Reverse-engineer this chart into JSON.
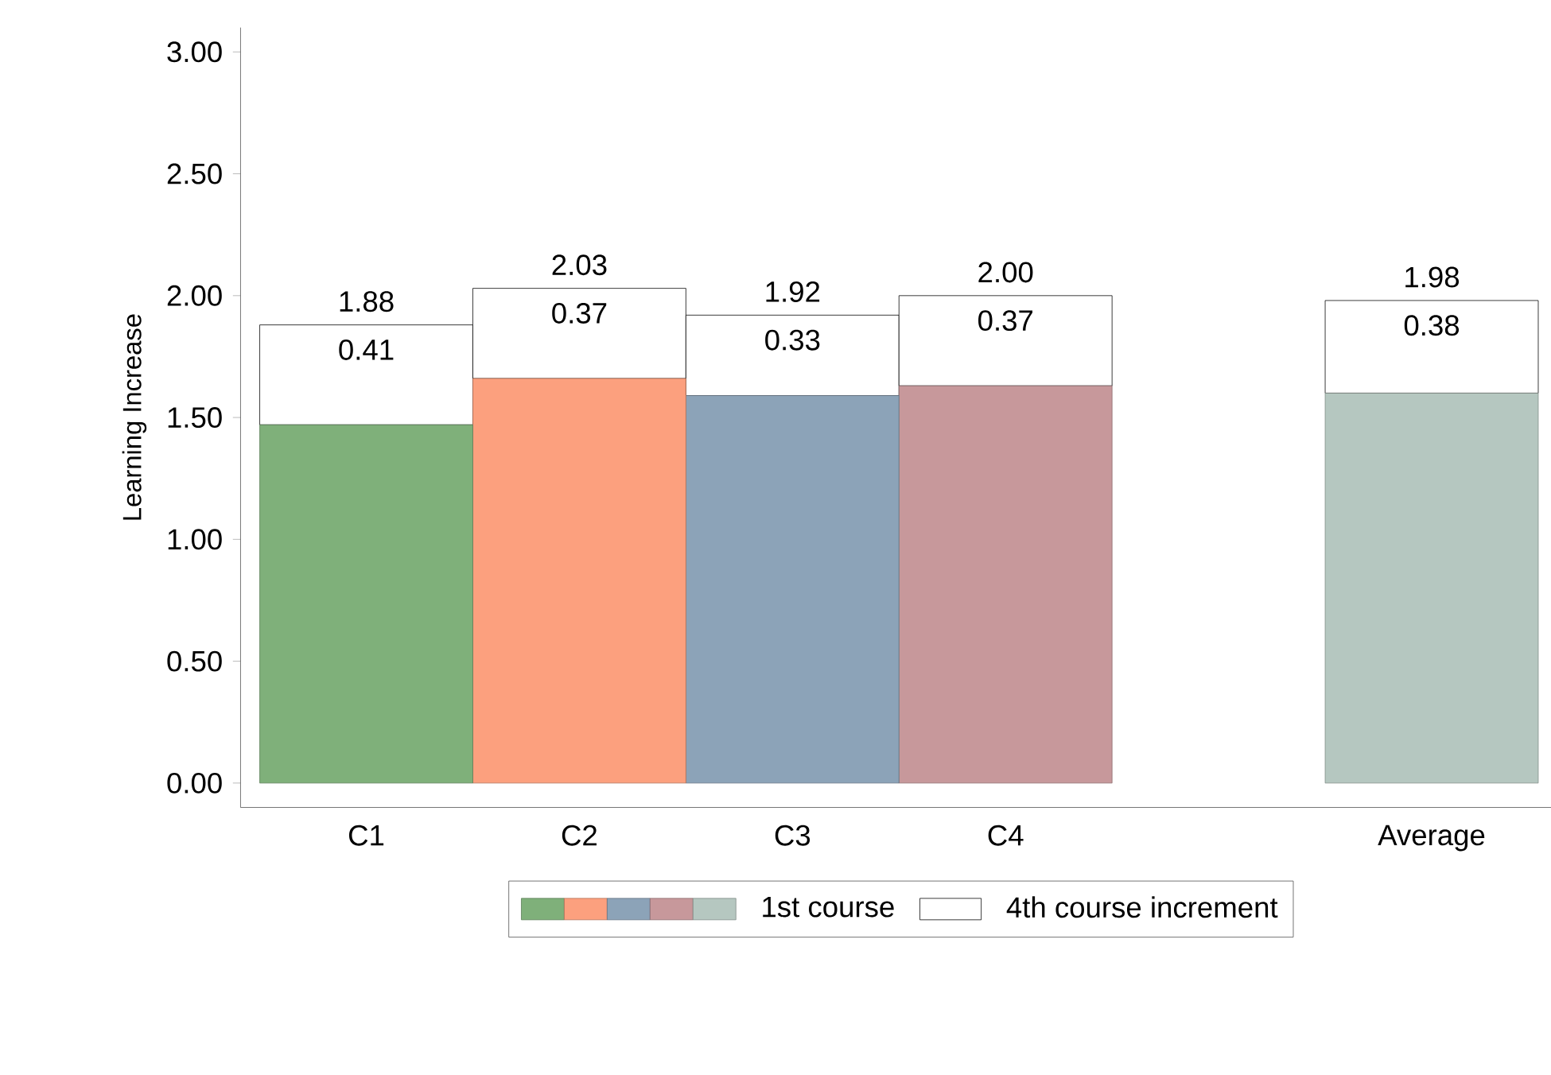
{
  "chart_data": {
    "type": "bar",
    "stacked": true,
    "ylabel": "Learning Increase",
    "categories": [
      "C1",
      "C2",
      "C3",
      "C4",
      null,
      "Average"
    ],
    "series": [
      {
        "name": "1st course",
        "colors": [
          "#7fb07a",
          "#fca07e",
          "#8ca3b8",
          "#c7989b",
          null,
          "#b5c7c0"
        ],
        "values": [
          1.47,
          1.66,
          1.59,
          1.63,
          null,
          1.6
        ]
      },
      {
        "name": "4th course increment",
        "color": "#ffffff",
        "values": [
          0.41,
          0.37,
          0.33,
          0.37,
          null,
          0.38
        ],
        "value_labels": [
          "0.41",
          "0.37",
          "0.33",
          "0.37",
          null,
          "0.38"
        ]
      }
    ],
    "totals": [
      "1.88",
      "2.03",
      "1.92",
      "2.00",
      null,
      "1.98"
    ],
    "ylim": [
      -0.1,
      3.1
    ],
    "yticks": [
      {
        "value": 0,
        "label": "0.00"
      },
      {
        "value": 0.5,
        "label": "0.50"
      },
      {
        "value": 1,
        "label": "1.00"
      },
      {
        "value": 1.5,
        "label": "1.50"
      },
      {
        "value": 2,
        "label": "2.00"
      },
      {
        "value": 2.5,
        "label": "2.50"
      },
      {
        "value": 3,
        "label": "3.00"
      }
    ],
    "grid": false,
    "legend": "bottom"
  }
}
